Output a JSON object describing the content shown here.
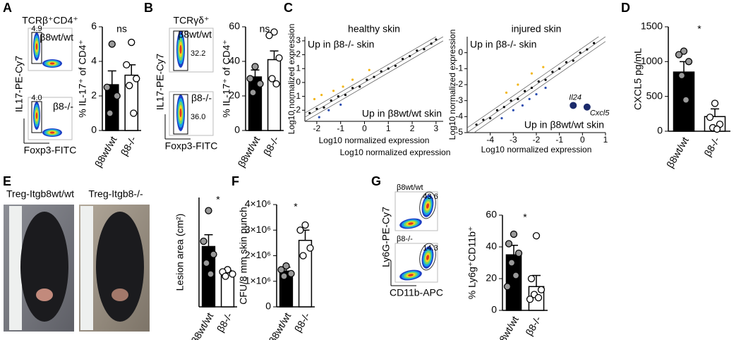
{
  "panel_labels": [
    "A",
    "B",
    "C",
    "D",
    "E",
    "F",
    "G"
  ],
  "flow_a": {
    "title": "TCRβ⁺CD4⁺",
    "ylabel": "IL17-PE-Cy7",
    "xlabel": "Foxp3-FITC",
    "plots": [
      {
        "label": "β8wt/wt",
        "gate": "4.9"
      },
      {
        "label": "β8-/-",
        "gate": "4.0"
      }
    ]
  },
  "flow_b": {
    "title": "TCRγδ⁺",
    "ylabel": "IL17-PE-Cy7",
    "xlabel": "Foxp3-FITC",
    "plots": [
      {
        "label": "β8wt/wt",
        "gate": "32.2"
      },
      {
        "label": "β8-/-",
        "gate": "36.0"
      }
    ]
  },
  "flow_g": {
    "ylabel": "Ly6G-PE-Cy7",
    "xlabel": "CD11b-APC",
    "plots": [
      {
        "label": "β8wt/wt",
        "gate": "43.6"
      },
      {
        "label": "β8-/-",
        "gate": "14.3"
      }
    ]
  },
  "photos_e": {
    "labels": [
      "Treg-Itgb8wt/wt",
      "Treg-Itgb8-/-"
    ]
  },
  "chart_data": [
    {
      "type": "bar",
      "ylabel": "% IL-17⁺ of CD4⁺",
      "annotation": "ns",
      "categories": [
        "β8wt/wt",
        "β8-/-"
      ],
      "values": [
        2.65,
        3.2
      ],
      "errors": [
        0.8,
        0.6
      ],
      "points": [
        [
          5.0,
          2.5,
          2.0,
          1.0
        ],
        [
          5.1,
          3.8,
          3.0,
          2.6,
          1.0
        ]
      ],
      "colors": [
        "#000000",
        "#ffffff"
      ],
      "point_colors": [
        "#999999",
        "#ffffff"
      ],
      "ylim": [
        0,
        6
      ],
      "yticks": [
        0,
        2,
        4,
        6
      ]
    },
    {
      "type": "bar",
      "ylabel": "% IL-17⁺ of CD4⁺",
      "annotation": "ns",
      "categories": [
        "β8wt/wt",
        "β8-/-"
      ],
      "values": [
        31,
        41
      ],
      "errors": [
        4,
        5
      ],
      "points": [
        [
          37,
          30,
          27,
          22
        ],
        [
          57,
          55,
          42,
          30,
          27
        ]
      ],
      "colors": [
        "#000000",
        "#ffffff"
      ],
      "point_colors": [
        "#999999",
        "#ffffff"
      ],
      "ylim": [
        0,
        60
      ],
      "yticks": [
        0,
        20,
        40,
        60
      ]
    },
    {
      "type": "scatter",
      "title": "healthy skin",
      "xlabel": "Log10 normalized expression",
      "ylabel": "Log10 normalized expression",
      "annotations": [
        "Up in β8-/- skin",
        "Up in β8wt/wt skin"
      ],
      "xlim": [
        -2.5,
        3.3
      ],
      "ylim": [
        -2.8,
        3.3
      ],
      "xticks": [
        -2,
        -1,
        0,
        1,
        2,
        3
      ],
      "yticks": [
        -2,
        -1,
        0,
        1,
        2,
        3
      ],
      "series": [
        {
          "color": "#000000",
          "x": [
            -2.3,
            -2.0,
            -1.7,
            -1.4,
            -1.1,
            -0.8,
            -0.5,
            -0.2,
            0.1,
            0.4,
            0.7,
            1.0,
            1.3,
            1.6,
            1.9,
            2.2,
            2.5,
            2.8,
            3.0
          ],
          "y": [
            -2.2,
            -1.9,
            -1.8,
            -1.3,
            -1.0,
            -0.9,
            -0.4,
            -0.3,
            0.2,
            0.4,
            0.8,
            1.0,
            1.2,
            1.7,
            1.9,
            2.3,
            2.4,
            2.8,
            3.1
          ]
        },
        {
          "color": "#f2b619",
          "x": [
            -2.1,
            -1.8,
            -1.3,
            -0.9,
            -0.5,
            0.2
          ],
          "y": [
            -1.2,
            -0.9,
            -0.6,
            -0.3,
            0.2,
            0.9
          ]
        },
        {
          "color": "#2a4db0",
          "x": [
            -1.9,
            -1.5,
            -1.0
          ],
          "y": [
            -2.5,
            -2.0,
            -1.6
          ]
        }
      ]
    },
    {
      "type": "scatter",
      "title": "injured skin",
      "xlabel": "Log10 normalized expression",
      "ylabel": "Log10 normalized expression",
      "annotations": [
        "Up in β8-/- skin",
        "Up in β8wt/wt skin"
      ],
      "xlim": [
        -5,
        1
      ],
      "ylim": [
        -5,
        1
      ],
      "xticks": [
        -4,
        -3,
        -2,
        -1,
        0,
        1
      ],
      "yticks": [
        -5,
        -4,
        -3,
        -2,
        -1,
        0
      ],
      "series": [
        {
          "color": "#000000",
          "x": [
            -4.6,
            -4.3,
            -4.0,
            -3.7,
            -3.4,
            -3.1,
            -2.8,
            -2.5,
            -2.2,
            -1.9,
            -1.6,
            -1.3,
            -1.0,
            -0.7,
            -0.4,
            -0.1,
            0.2,
            0.5
          ],
          "y": [
            -4.5,
            -4.2,
            -4.1,
            -3.6,
            -3.4,
            -3.0,
            -2.9,
            -2.4,
            -2.2,
            -1.8,
            -1.7,
            -1.2,
            -1.0,
            -0.6,
            -0.5,
            0.0,
            0.2,
            0.6
          ]
        },
        {
          "color": "#f2b619",
          "x": [
            -3.3,
            -2.8,
            -2.2,
            -1.7
          ],
          "y": [
            -2.5,
            -2.0,
            -1.3,
            -0.9
          ]
        },
        {
          "color": "#2a4db0",
          "x": [
            -3.5,
            -3.0,
            -2.6,
            -2.3,
            -2.0,
            -1.6
          ],
          "y": [
            -4.1,
            -3.6,
            -3.3,
            -2.9,
            -2.6,
            -2.2
          ]
        },
        {
          "color": "#1b2a6b",
          "x": [
            -0.4,
            0.2
          ],
          "y": [
            -3.3,
            -3.4
          ],
          "labels": [
            "Il24",
            "Cxcl5"
          ]
        }
      ]
    },
    {
      "type": "bar",
      "ylabel": "CXCL5 pg/mL",
      "annotation": "*",
      "categories": [
        "β8wt/wt",
        "β8-/-"
      ],
      "values": [
        850,
        210
      ],
      "errors": [
        150,
        110
      ],
      "points": [
        [
          1150,
          1100,
          1000,
          800,
          450
        ],
        [
          400,
          200,
          100,
          50,
          30
        ]
      ],
      "colors": [
        "#000000",
        "#ffffff"
      ],
      "point_colors": [
        "#999999",
        "#ffffff"
      ],
      "ylim": [
        0,
        1500
      ],
      "yticks": [
        0,
        500,
        1000,
        1500
      ]
    },
    {
      "type": "bar",
      "ylabel": "Lesion area (cm²)",
      "annotation": "*",
      "categories": [
        "β8wt/wt",
        "β8-/-"
      ],
      "values": [
        1.38,
        0.78
      ],
      "errors": [
        0.27,
        0.05
      ],
      "points": [
        [
          2.2,
          1.5,
          1.2,
          1.0,
          0.75
        ],
        [
          0.85,
          0.8,
          0.75,
          0.7
        ]
      ],
      "colors": [
        "#000000",
        "#ffffff"
      ],
      "point_colors": [
        "#999999",
        "#ffffff"
      ],
      "ylim": [
        0,
        2.5
      ]
    },
    {
      "type": "bar",
      "ylabel": "CFU/8 mm skin punch",
      "annotation": "*",
      "categories": [
        "β8wt/wt",
        "β8-/-"
      ],
      "values": [
        1400000,
        2600000
      ],
      "errors": [
        150000,
        400000
      ],
      "points": [
        [
          1600000,
          1450000,
          1300000,
          1200000
        ],
        [
          3200000,
          3000000,
          2300000,
          2000000
        ]
      ],
      "colors": [
        "#000000",
        "#ffffff"
      ],
      "point_colors": [
        "#999999",
        "#ffffff"
      ],
      "ylim": [
        0,
        4000000
      ],
      "yticks": [
        0,
        {
          "value": 1000000,
          "label": "1×10⁶"
        },
        {
          "value": 2000000,
          "label": "2×10⁶"
        },
        {
          "value": 3000000,
          "label": "3×10⁶"
        },
        {
          "value": 4000000,
          "label": "4×10⁶"
        }
      ]
    },
    {
      "type": "bar",
      "ylabel": "% Ly6g⁺CD11b⁺",
      "annotation": "*",
      "categories": [
        "β8wt/wt",
        "β8-/-"
      ],
      "values": [
        35,
        15
      ],
      "errors": [
        6,
        7
      ],
      "points": [
        [
          48,
          42,
          36,
          30,
          22,
          15
        ],
        [
          47,
          20,
          13,
          10,
          8,
          7
        ]
      ],
      "colors": [
        "#000000",
        "#ffffff"
      ],
      "point_colors": [
        "#999999",
        "#ffffff"
      ],
      "ylim": [
        0,
        60
      ],
      "yticks": [
        0,
        20,
        40,
        60
      ]
    }
  ]
}
